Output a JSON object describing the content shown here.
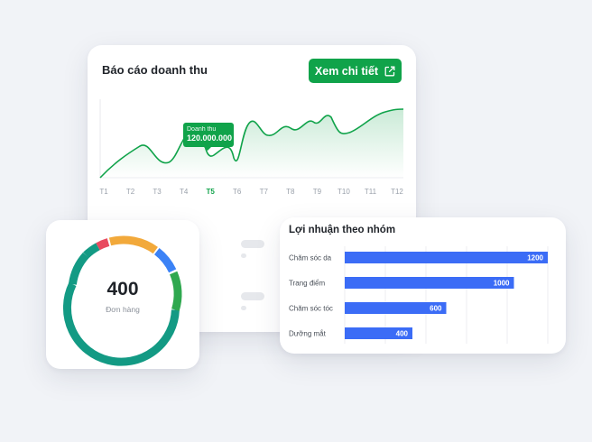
{
  "revenue": {
    "title": "Báo cáo doanh thu",
    "detail_button_label": "Xem chi tiết",
    "detail_icon": "external-link-icon",
    "tooltip": {
      "label": "Doanh thu",
      "value": "120.000.000"
    },
    "active_month": "T5",
    "accent_color": "#10a34a",
    "chart_data": {
      "type": "area",
      "categories": [
        "T1",
        "T2",
        "T3",
        "T4",
        "T5",
        "T6",
        "T7",
        "T8",
        "T9",
        "T10",
        "T11",
        "T12"
      ],
      "x_ticks": [
        "T1",
        "T2",
        "T3",
        "T4",
        "T5",
        "T6",
        "T7",
        "T8",
        "T9",
        "T10",
        "T11",
        "T12"
      ],
      "grid": false,
      "legend": "none"
    }
  },
  "orders": {
    "value": "400",
    "label": "Đơn hàng",
    "segment_colors": [
      "#139a84",
      "#e84a5f",
      "#f2a93b",
      "#3b82f6",
      "#2fa84f"
    ]
  },
  "profit": {
    "title": "Lợi nhuận theo nhóm",
    "bar_color": "#3b6cf6",
    "chart_data": {
      "type": "bar",
      "orientation": "horizontal",
      "categories": [
        "Chăm sóc da",
        "Trang điểm",
        "Chăm sóc tóc",
        "Dưỡng mắt"
      ],
      "values": [
        1200,
        1000,
        600,
        400
      ],
      "value_labels": [
        "1200",
        "1000",
        "600",
        "400"
      ],
      "xlim": [
        0,
        1200
      ],
      "grid": true
    }
  }
}
